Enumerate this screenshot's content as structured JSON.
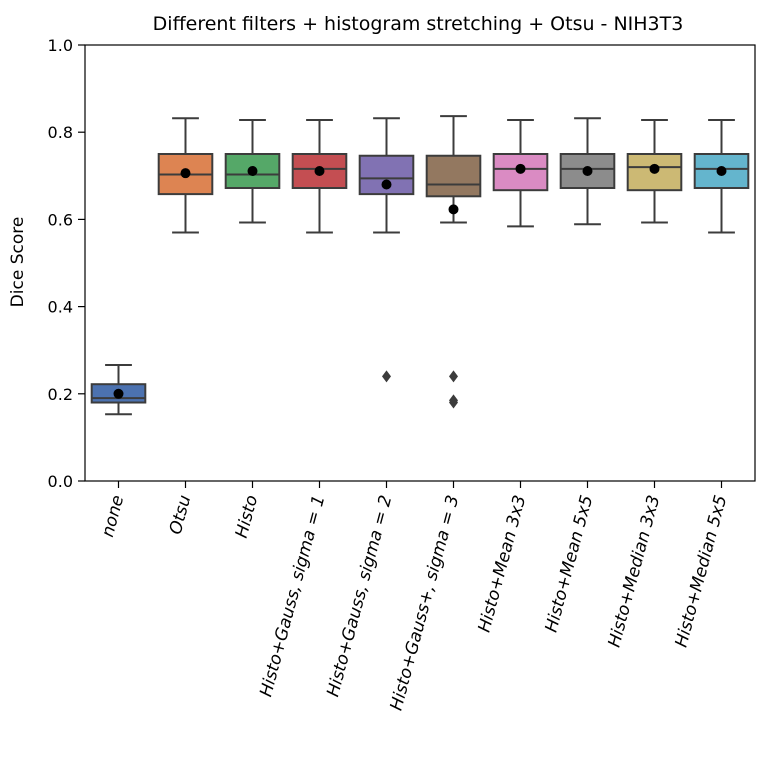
{
  "chart_data": {
    "type": "box",
    "title": "Different filters + histogram stretching + Otsu - NIH3T3",
    "xlabel": "",
    "ylabel": "Dice Score",
    "ylim": [
      0.0,
      1.0
    ],
    "yticks": [
      "0.0",
      "0.2",
      "0.4",
      "0.6",
      "0.8",
      "1.0"
    ],
    "grid": false,
    "legend": "none",
    "categories": [
      "none",
      "Otsu",
      "Histo",
      "Histo+Gauss, sigma = 1",
      "Histo+Gauss, sigma = 2",
      "Histo+Gauss+, sigma = 3",
      "Histo+Mean 3x3",
      "Histo+Mean 5x5",
      "Histo+Median 3x3",
      "Histo+Median 5x5"
    ],
    "boxes": [
      {
        "whisker_low": 0.153,
        "q1": 0.18,
        "median": 0.19,
        "q3": 0.222,
        "whisker_high": 0.266,
        "mean": 0.2,
        "outliers": [],
        "color": "#4c72b0"
      },
      {
        "whisker_low": 0.57,
        "q1": 0.658,
        "median": 0.703,
        "q3": 0.75,
        "whisker_high": 0.832,
        "mean": 0.706,
        "outliers": [],
        "color": "#dd8452"
      },
      {
        "whisker_low": 0.593,
        "q1": 0.672,
        "median": 0.703,
        "q3": 0.75,
        "whisker_high": 0.828,
        "mean": 0.711,
        "outliers": [],
        "color": "#55a868"
      },
      {
        "whisker_low": 0.57,
        "q1": 0.672,
        "median": 0.716,
        "q3": 0.75,
        "whisker_high": 0.828,
        "mean": 0.711,
        "outliers": [],
        "color": "#c44e52"
      },
      {
        "whisker_low": 0.57,
        "q1": 0.658,
        "median": 0.694,
        "q3": 0.746,
        "whisker_high": 0.832,
        "mean": 0.68,
        "outliers": [
          0.24
        ],
        "color": "#8172b3"
      },
      {
        "whisker_low": 0.593,
        "q1": 0.653,
        "median": 0.68,
        "q3": 0.746,
        "whisker_high": 0.837,
        "mean": 0.623,
        "outliers": [
          0.24,
          0.185,
          0.18
        ],
        "color": "#937860"
      },
      {
        "whisker_low": 0.584,
        "q1": 0.667,
        "median": 0.716,
        "q3": 0.75,
        "whisker_high": 0.828,
        "mean": 0.716,
        "outliers": [],
        "color": "#da8bc3"
      },
      {
        "whisker_low": 0.589,
        "q1": 0.672,
        "median": 0.716,
        "q3": 0.75,
        "whisker_high": 0.832,
        "mean": 0.711,
        "outliers": [],
        "color": "#8c8c8c"
      },
      {
        "whisker_low": 0.593,
        "q1": 0.667,
        "median": 0.72,
        "q3": 0.75,
        "whisker_high": 0.828,
        "mean": 0.716,
        "outliers": [],
        "color": "#ccb974"
      },
      {
        "whisker_low": 0.57,
        "q1": 0.672,
        "median": 0.716,
        "q3": 0.75,
        "whisker_high": 0.828,
        "mean": 0.711,
        "outliers": [],
        "color": "#64b5cd"
      }
    ]
  }
}
